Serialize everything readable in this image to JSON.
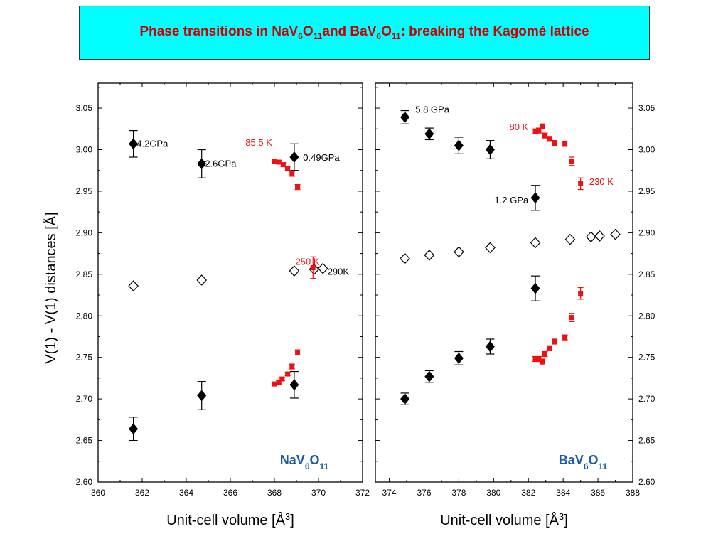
{
  "title": {
    "parts": [
      "Phase transitions in NaV",
      "6",
      "O",
      "11",
      "and BaV",
      "6",
      "O",
      "11",
      ": breaking the Kagomé lattice"
    ]
  },
  "colors": {
    "title_bg": "#00ffff",
    "title_text": "#cc0000",
    "red": "#ee1111",
    "black": "#000000",
    "compound_label": "#1a5aa8"
  },
  "y_axis_label": "V(1) - V(1) distances [Å]",
  "chart_data": [
    {
      "type": "scatter",
      "name": "NaV6O11",
      "compound_label": {
        "base": "NaV",
        "s1": "6",
        "mid": "O",
        "s2": "11"
      },
      "xlabel": {
        "text": "Unit-cell volume [Å",
        "sup": "3",
        "end": "]"
      },
      "xlim": [
        360,
        372
      ],
      "ylim": [
        2.6,
        3.08
      ],
      "xticks": [
        "360",
        "362",
        "364",
        "366",
        "368",
        "370",
        "372"
      ],
      "yticks": [
        "2.60",
        "2.65",
        "2.70",
        "2.75",
        "2.80",
        "2.85",
        "2.90",
        "2.95",
        "3.00",
        "3.05"
      ],
      "y_tick_side": "left",
      "series": [
        {
          "name": "pressure (filled diamonds)",
          "marker": "diamond-filled",
          "color": "#000000",
          "points": [
            {
              "x": 361.6,
              "y": 3.007,
              "err": 0.016
            },
            {
              "x": 364.7,
              "y": 2.983,
              "err": 0.017
            },
            {
              "x": 368.9,
              "y": 2.991,
              "err": 0.016
            },
            {
              "x": 361.6,
              "y": 2.664,
              "err": 0.014
            },
            {
              "x": 364.7,
              "y": 2.704,
              "err": 0.017
            },
            {
              "x": 368.9,
              "y": 2.717,
              "err": 0.016
            }
          ]
        },
        {
          "name": "average (open diamonds)",
          "marker": "diamond-open",
          "color": "#000000",
          "points": [
            {
              "x": 361.6,
              "y": 2.836
            },
            {
              "x": 364.7,
              "y": 2.843
            },
            {
              "x": 368.9,
              "y": 2.854
            },
            {
              "x": 369.8,
              "y": 2.856
            },
            {
              "x": 370.2,
              "y": 2.857
            }
          ]
        },
        {
          "name": "temperature (red squares)",
          "marker": "square",
          "color": "#ee1111",
          "points": [
            {
              "x": 368.0,
              "y": 2.986,
              "err": 0.002
            },
            {
              "x": 368.2,
              "y": 2.985,
              "err": 0.002
            },
            {
              "x": 368.4,
              "y": 2.982,
              "err": 0.002
            },
            {
              "x": 368.6,
              "y": 2.977,
              "err": 0.002
            },
            {
              "x": 368.8,
              "y": 2.971,
              "err": 0.003
            },
            {
              "x": 369.05,
              "y": 2.955,
              "err": 0.003
            },
            {
              "x": 369.75,
              "y": 2.858,
              "err": 0.013
            },
            {
              "x": 368.0,
              "y": 2.718,
              "err": 0.002
            },
            {
              "x": 368.2,
              "y": 2.72,
              "err": 0.002
            },
            {
              "x": 368.35,
              "y": 2.724,
              "err": 0.002
            },
            {
              "x": 368.6,
              "y": 2.73,
              "err": 0.002
            },
            {
              "x": 368.8,
              "y": 2.739,
              "err": 0.003
            },
            {
              "x": 369.05,
              "y": 2.756,
              "err": 0.003
            }
          ]
        }
      ],
      "annotations": [
        {
          "text": "4.2GPa",
          "x": 361.75,
          "y": 3.007,
          "color": "#000000",
          "anchor": "start"
        },
        {
          "text": "2.6GPa",
          "x": 364.85,
          "y": 2.983,
          "color": "#000000",
          "anchor": "start"
        },
        {
          "text": "0.49GPa",
          "x": 369.3,
          "y": 2.99,
          "color": "#000000",
          "anchor": "start"
        },
        {
          "text": "85.5 K",
          "x": 367.9,
          "y": 3.008,
          "color": "#ee1111",
          "anchor": "end"
        },
        {
          "text": "250 K",
          "x": 369.5,
          "y": 2.865,
          "color": "#ee1111",
          "anchor": "middle"
        },
        {
          "text": "290K",
          "x": 370.9,
          "y": 2.853,
          "color": "#000000",
          "anchor": "middle"
        }
      ]
    },
    {
      "type": "scatter",
      "name": "BaV6O11",
      "compound_label": {
        "base": "BaV",
        "s1": "6",
        "mid": "O",
        "s2": "11"
      },
      "xlabel": {
        "text": "Unit-cell volume [Å",
        "sup": "3",
        "end": "]"
      },
      "xlim": [
        373.2,
        388
      ],
      "ylim": [
        2.6,
        3.08
      ],
      "xticks": [
        "374",
        "376",
        "378",
        "380",
        "382",
        "384",
        "386",
        "388"
      ],
      "yticks": [
        "2.60",
        "2.65",
        "2.70",
        "2.75",
        "2.80",
        "2.85",
        "2.90",
        "2.95",
        "3.00",
        "3.05"
      ],
      "y_tick_side": "right",
      "series": [
        {
          "name": "pressure (filled diamonds)",
          "marker": "diamond-filled",
          "color": "#000000",
          "points": [
            {
              "x": 374.9,
              "y": 3.039,
              "err": 0.008
            },
            {
              "x": 376.3,
              "y": 3.019,
              "err": 0.007
            },
            {
              "x": 378.0,
              "y": 3.005,
              "err": 0.01
            },
            {
              "x": 379.8,
              "y": 3.0,
              "err": 0.011
            },
            {
              "x": 382.4,
              "y": 2.942,
              "err": 0.015
            },
            {
              "x": 374.9,
              "y": 2.7,
              "err": 0.007
            },
            {
              "x": 376.3,
              "y": 2.727,
              "err": 0.007
            },
            {
              "x": 378.0,
              "y": 2.749,
              "err": 0.008
            },
            {
              "x": 379.8,
              "y": 2.763,
              "err": 0.009
            },
            {
              "x": 382.4,
              "y": 2.833,
              "err": 0.015
            }
          ]
        },
        {
          "name": "average (open diamonds)",
          "marker": "diamond-open",
          "color": "#000000",
          "points": [
            {
              "x": 374.9,
              "y": 2.869
            },
            {
              "x": 376.3,
              "y": 2.873
            },
            {
              "x": 378.0,
              "y": 2.877
            },
            {
              "x": 379.8,
              "y": 2.882
            },
            {
              "x": 382.4,
              "y": 2.888
            },
            {
              "x": 384.4,
              "y": 2.892
            },
            {
              "x": 385.6,
              "y": 2.895
            },
            {
              "x": 386.1,
              "y": 2.896
            },
            {
              "x": 387.0,
              "y": 2.898
            }
          ]
        },
        {
          "name": "temperature (red squares)",
          "marker": "square",
          "color": "#ee1111",
          "points": [
            {
              "x": 382.4,
              "y": 3.022,
              "err": 0.003
            },
            {
              "x": 382.6,
              "y": 3.023,
              "err": 0.003
            },
            {
              "x": 382.8,
              "y": 3.028,
              "err": 0.003
            },
            {
              "x": 382.95,
              "y": 3.017,
              "err": 0.003
            },
            {
              "x": 383.2,
              "y": 3.013,
              "err": 0.003
            },
            {
              "x": 383.5,
              "y": 3.008,
              "err": 0.003
            },
            {
              "x": 384.1,
              "y": 3.007,
              "err": 0.003
            },
            {
              "x": 384.5,
              "y": 2.986,
              "err": 0.005
            },
            {
              "x": 385.0,
              "y": 2.959,
              "err": 0.007
            },
            {
              "x": 382.4,
              "y": 2.748,
              "err": 0.003
            },
            {
              "x": 382.6,
              "y": 2.748,
              "err": 0.003
            },
            {
              "x": 382.8,
              "y": 2.745,
              "err": 0.003
            },
            {
              "x": 382.95,
              "y": 2.754,
              "err": 0.003
            },
            {
              "x": 383.2,
              "y": 2.761,
              "err": 0.003
            },
            {
              "x": 383.5,
              "y": 2.769,
              "err": 0.003
            },
            {
              "x": 384.1,
              "y": 2.774,
              "err": 0.003
            },
            {
              "x": 384.5,
              "y": 2.798,
              "err": 0.005
            },
            {
              "x": 385.0,
              "y": 2.827,
              "err": 0.007
            }
          ]
        }
      ],
      "annotations": [
        {
          "text": "5.8 GPa",
          "x": 375.5,
          "y": 3.048,
          "color": "#000000",
          "anchor": "start"
        },
        {
          "text": "1.2 GPa",
          "x": 382.0,
          "y": 2.939,
          "color": "#000000",
          "anchor": "end"
        },
        {
          "text": "80 K",
          "x": 382.0,
          "y": 3.027,
          "color": "#ee1111",
          "anchor": "end"
        },
        {
          "text": "230 K",
          "x": 385.5,
          "y": 2.961,
          "color": "#ee1111",
          "anchor": "start"
        }
      ]
    }
  ]
}
